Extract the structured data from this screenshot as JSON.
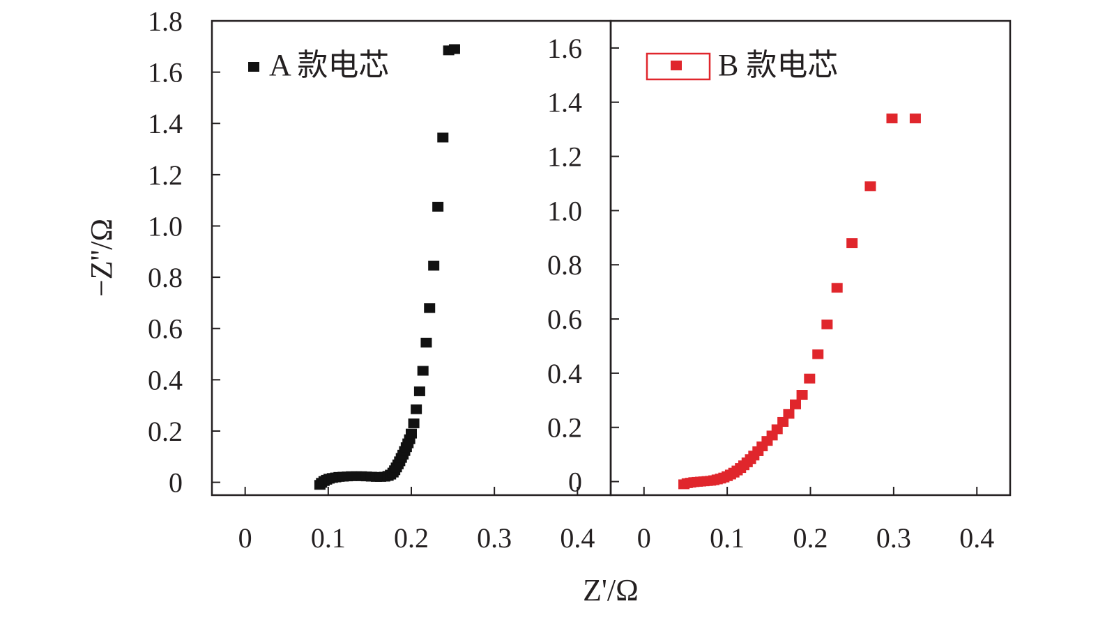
{
  "chart_data": [
    {
      "type": "scatter",
      "title": "",
      "xlabel": "Z'/Ω",
      "ylabel": "−Z''/Ω",
      "xlim": [
        -0.04,
        0.44
      ],
      "ylim": [
        -0.05,
        1.8
      ],
      "xticks": [
        "0",
        "0.1",
        "0.2",
        "0.3",
        "0.4"
      ],
      "yticks": [
        "0",
        "0.2",
        "0.4",
        "0.6",
        "0.8",
        "1.0",
        "1.2",
        "1.4",
        "1.6",
        "1.8"
      ],
      "legend": {
        "label": "A 款电芯",
        "placement": "top-left"
      },
      "color": "#111111",
      "series": [
        {
          "name": "A 款电芯",
          "x": [
            0.09,
            0.092,
            0.095,
            0.098,
            0.101,
            0.105,
            0.109,
            0.113,
            0.118,
            0.123,
            0.128,
            0.134,
            0.14,
            0.146,
            0.152,
            0.158,
            0.163,
            0.168,
            0.172,
            0.175,
            0.178,
            0.18,
            0.182,
            0.184,
            0.186,
            0.188,
            0.19,
            0.192,
            0.194,
            0.196,
            0.198,
            0.2,
            0.203,
            0.206,
            0.21,
            0.214,
            0.218,
            0.222,
            0.227,
            0.232,
            0.238,
            0.245,
            0.252
          ],
          "y": [
            -0.01,
            -0.002,
            0.005,
            0.01,
            0.014,
            0.017,
            0.019,
            0.021,
            0.022,
            0.023,
            0.024,
            0.024,
            0.024,
            0.023,
            0.022,
            0.021,
            0.021,
            0.022,
            0.025,
            0.03,
            0.038,
            0.047,
            0.058,
            0.07,
            0.082,
            0.095,
            0.108,
            0.122,
            0.137,
            0.152,
            0.168,
            0.19,
            0.23,
            0.285,
            0.355,
            0.435,
            0.545,
            0.68,
            0.845,
            1.075,
            1.345,
            1.685,
            1.69
          ]
        }
      ]
    },
    {
      "type": "scatter",
      "title": "",
      "xlabel": "Z'/Ω",
      "ylabel": "",
      "xlim": [
        -0.04,
        0.44
      ],
      "ylim": [
        -0.05,
        1.7
      ],
      "xticks": [
        "0",
        "0.1",
        "0.2",
        "0.3",
        "0.4"
      ],
      "yticks": [
        "0",
        "0.2",
        "0.4",
        "0.6",
        "0.8",
        "1.0",
        "1.2",
        "1.4",
        "1.6"
      ],
      "legend": {
        "label": "B 款电芯",
        "placement": "top-left"
      },
      "color": "#e0262c",
      "series": [
        {
          "name": "B 款电芯",
          "x": [
            0.048,
            0.052,
            0.056,
            0.06,
            0.064,
            0.068,
            0.072,
            0.076,
            0.08,
            0.084,
            0.088,
            0.092,
            0.096,
            0.1,
            0.104,
            0.108,
            0.112,
            0.116,
            0.12,
            0.124,
            0.128,
            0.132,
            0.137,
            0.142,
            0.148,
            0.154,
            0.16,
            0.167,
            0.174,
            0.182,
            0.19,
            0.199,
            0.209,
            0.22,
            0.232,
            0.25,
            0.272,
            0.298,
            0.326
          ],
          "y": [
            -0.01,
            -0.006,
            -0.004,
            -0.002,
            -0.001,
            0.0,
            0.001,
            0.002,
            0.003,
            0.005,
            0.008,
            0.011,
            0.015,
            0.02,
            0.026,
            0.033,
            0.041,
            0.05,
            0.06,
            0.071,
            0.083,
            0.096,
            0.112,
            0.13,
            0.15,
            0.17,
            0.193,
            0.22,
            0.25,
            0.285,
            0.32,
            0.38,
            0.47,
            0.58,
            0.715,
            0.88,
            1.09,
            1.34,
            1.34
          ]
        }
      ]
    }
  ]
}
